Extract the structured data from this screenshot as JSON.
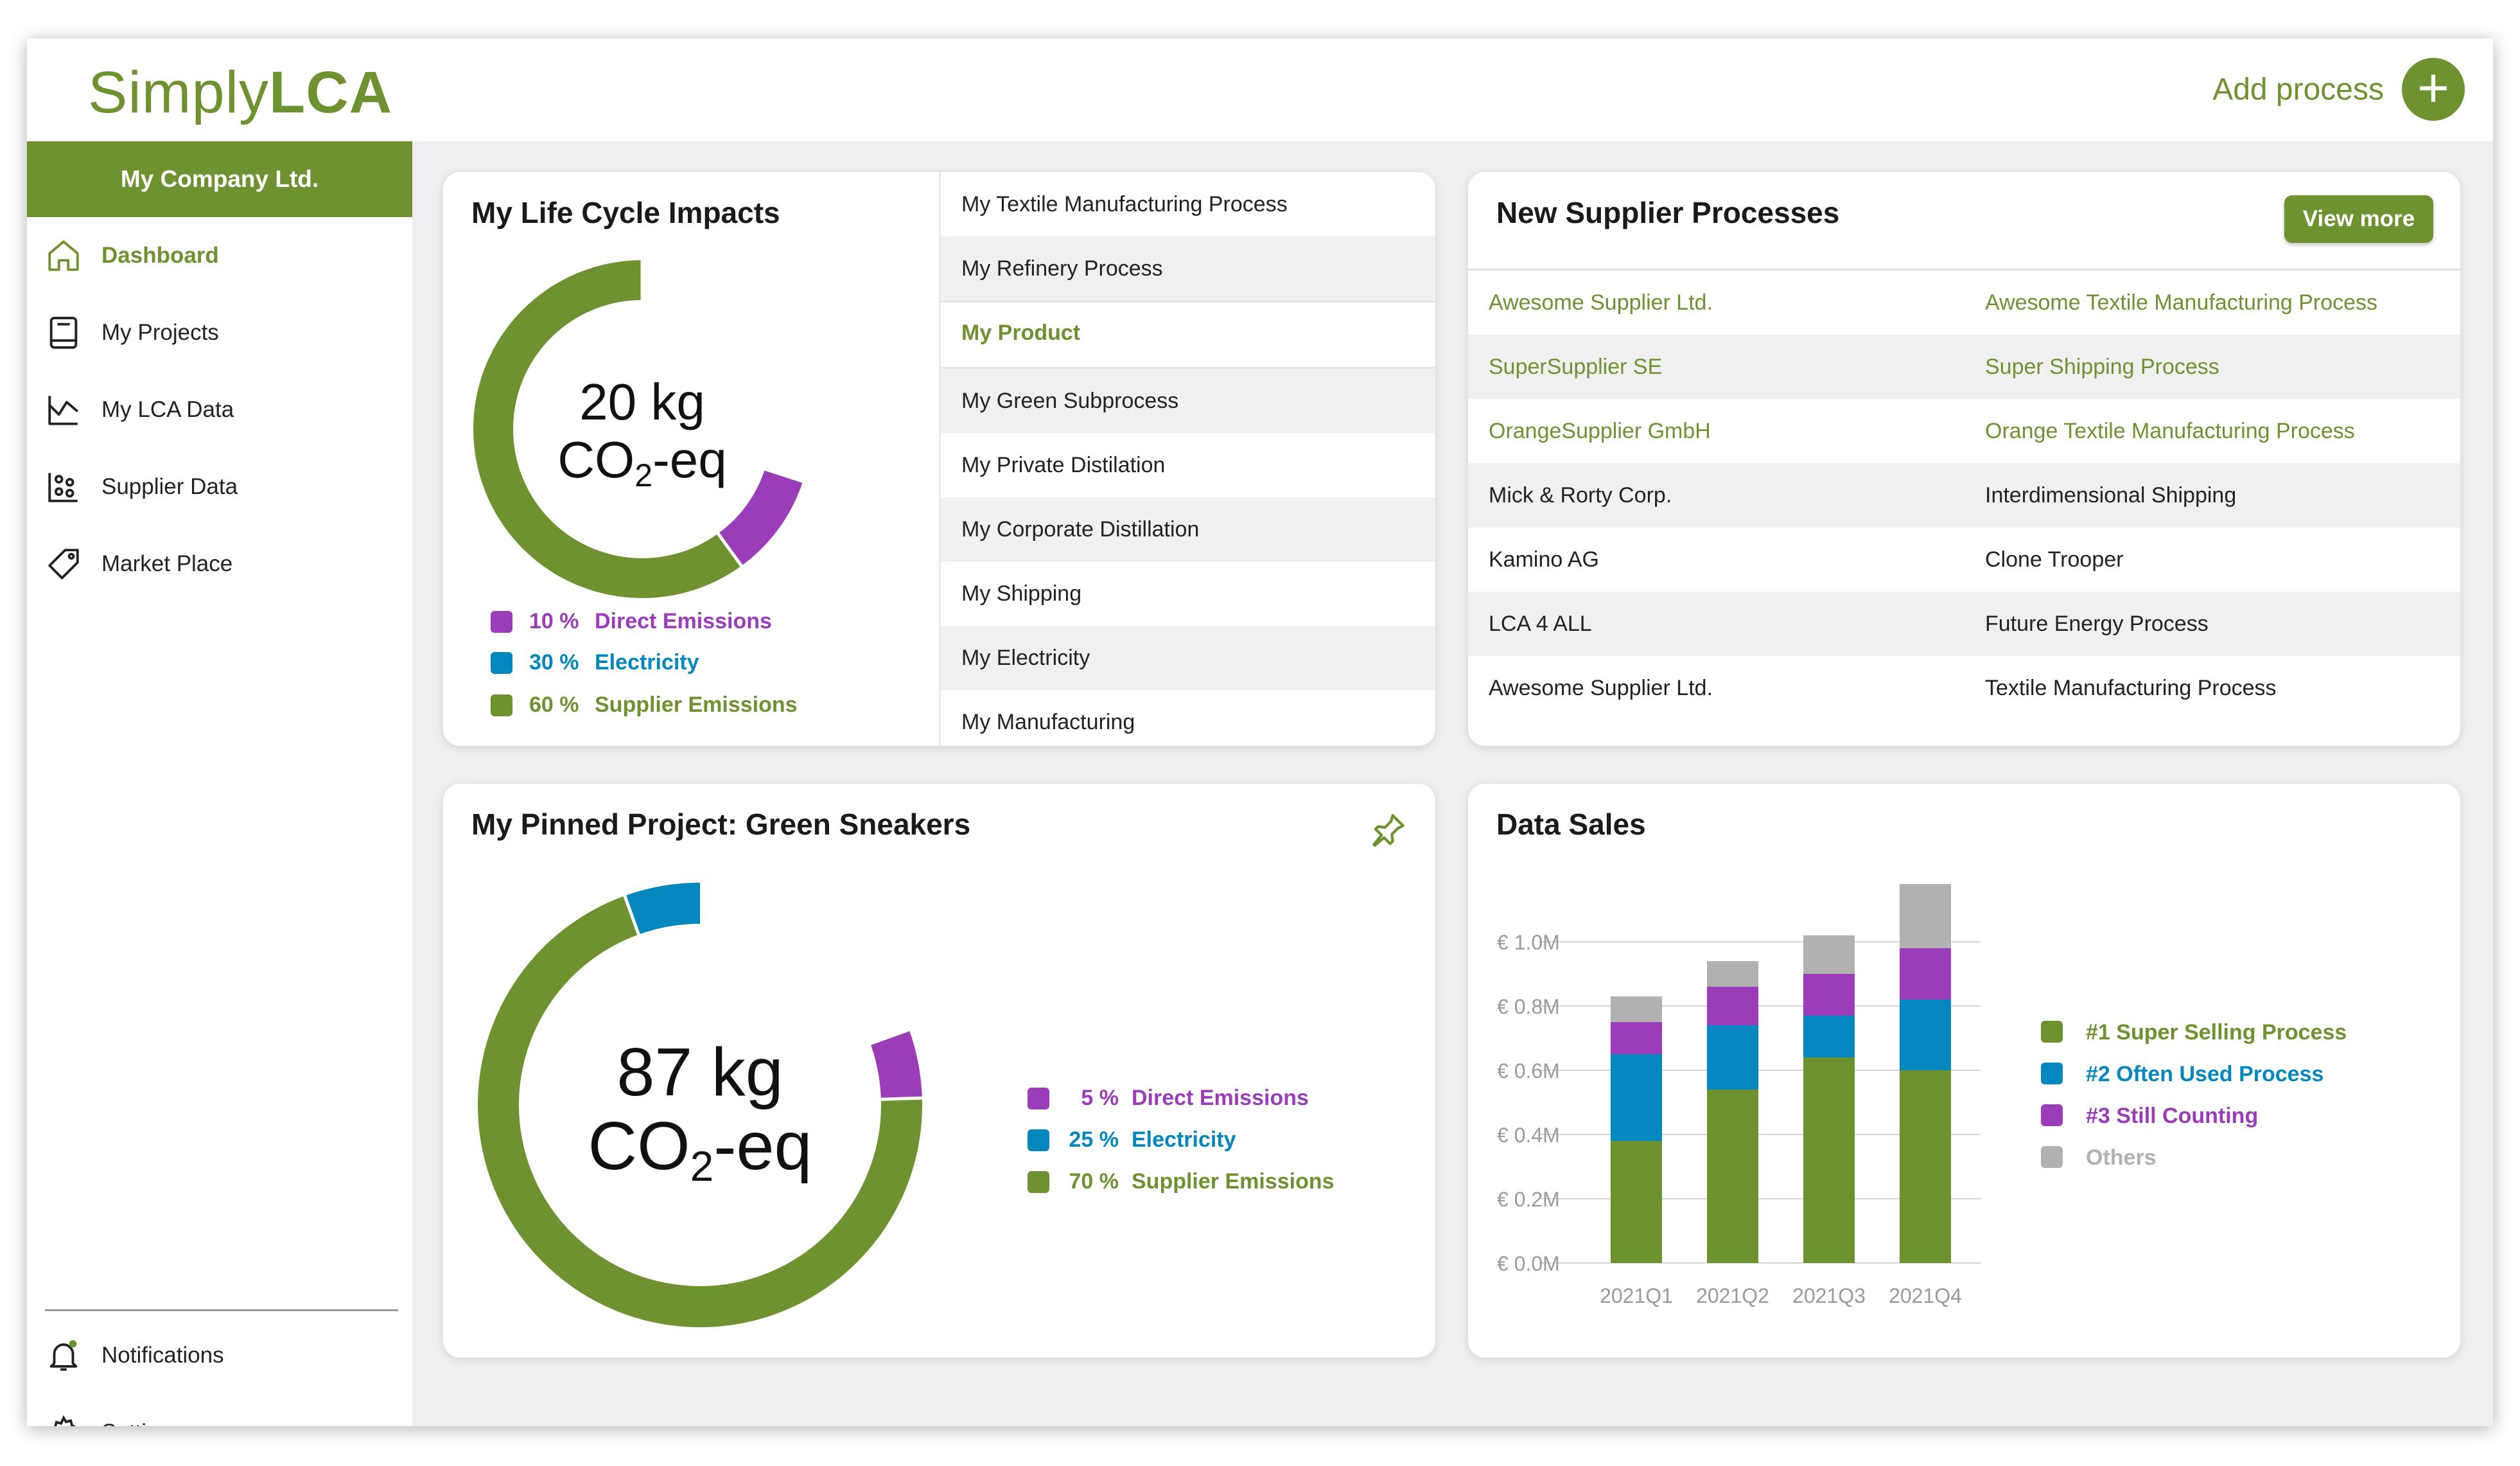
{
  "app": {
    "logo_light": "Simply",
    "logo_bold": "LCA",
    "add_process_label": "Add process"
  },
  "sidebar": {
    "company": "My Company Ltd.",
    "items": [
      {
        "label": "Dashboard",
        "icon": "home-icon",
        "active": true
      },
      {
        "label": "My Projects",
        "icon": "book-icon"
      },
      {
        "label": "My LCA Data",
        "icon": "chart-icon"
      },
      {
        "label": "Supplier Data",
        "icon": "supplier-data-icon"
      },
      {
        "label": "Market Place",
        "icon": "tag-icon"
      }
    ],
    "bottom_items": [
      {
        "label": "Notifications",
        "icon": "bell-icon"
      },
      {
        "label": "Settings",
        "icon": "gear-icon"
      }
    ]
  },
  "colors": {
    "brand_green": "#6e922f",
    "blue": "#0487bd",
    "purple": "#9b3db8",
    "gray": "#b1b1b1"
  },
  "life_cycle": {
    "title": "My Life Cycle Impacts",
    "total_value": "20 kg",
    "total_unit_prefix": "CO",
    "total_unit_sub": "2",
    "total_unit_suffix": "-eq",
    "segments": [
      {
        "pct": "10 %",
        "label": "Direct Emissions",
        "value": 10,
        "color": "#9b3db8"
      },
      {
        "pct": "30 %",
        "label": "Electricity",
        "value": 30,
        "color": "#0487bd"
      },
      {
        "pct": "60 %",
        "label": "Supplier Emissions",
        "value": 60,
        "color": "#6e922f"
      }
    ],
    "processes": [
      "My Textile Manufacturing Process",
      "My Refinery Process",
      "My Product",
      "My Green Subprocess",
      "My Private Distilation",
      "My Corporate Distillation",
      "My Shipping",
      "My Electricity",
      "My Manufacturing"
    ],
    "selected_process": "My Product"
  },
  "suppliers": {
    "title": "New Supplier Processes",
    "view_more_label": "View more",
    "rows": [
      {
        "supplier": "Awesome Supplier Ltd.",
        "process": "Awesome Textile Manufacturing Process",
        "highlight": true
      },
      {
        "supplier": "SuperSupplier SE",
        "process": "Super Shipping Process",
        "highlight": true
      },
      {
        "supplier": "OrangeSupplier GmbH",
        "process": "Orange Textile Manufacturing Process",
        "highlight": true
      },
      {
        "supplier": "Mick & Rorty Corp.",
        "process": "Interdimensional Shipping",
        "highlight": false
      },
      {
        "supplier": "Kamino AG",
        "process": "Clone Trooper",
        "highlight": false
      },
      {
        "supplier": "LCA 4 ALL",
        "process": "Future Energy Process",
        "highlight": false
      },
      {
        "supplier": "Awesome Supplier Ltd.",
        "process": "Textile Manufacturing Process",
        "highlight": false
      }
    ]
  },
  "pinned": {
    "title": "My Pinned Project: Green Sneakers",
    "total_value": "87 kg",
    "total_unit_prefix": "CO",
    "total_unit_sub": "2",
    "total_unit_suffix": "-eq",
    "icon": "pin-icon",
    "segments": [
      {
        "pct": "5 %",
        "label": "Direct Emissions",
        "value": 5,
        "color": "#9b3db8"
      },
      {
        "pct": "25 %",
        "label": "Electricity",
        "value": 25,
        "color": "#0487bd"
      },
      {
        "pct": "70 %",
        "label": "Supplier Emissions",
        "value": 70,
        "color": "#6e922f"
      }
    ]
  },
  "data_sales": {
    "title": "Data Sales",
    "chart_data": {
      "type": "bar",
      "stacked": true,
      "categories": [
        "2021Q1",
        "2021Q2",
        "2021Q3",
        "2021Q4"
      ],
      "y_ticks": [
        "€ 0.0M",
        "€ 0.2M",
        "€ 0.4M",
        "€ 0.6M",
        "€ 0.8M",
        "€ 1.0M"
      ],
      "ylim": [
        0,
        1.2
      ],
      "grid": true,
      "legend_position": "right",
      "series": [
        {
          "name": "#1 Super Selling Process",
          "values": [
            0.38,
            0.54,
            0.64,
            0.6
          ],
          "color": "#6e922f"
        },
        {
          "name": "#2 Often Used Process",
          "values": [
            0.27,
            0.2,
            0.13,
            0.22
          ],
          "color": "#0487bd"
        },
        {
          "name": "#3 Still Counting",
          "values": [
            0.1,
            0.12,
            0.13,
            0.16
          ],
          "color": "#9b3db8"
        },
        {
          "name": "Others",
          "values": [
            0.08,
            0.08,
            0.12,
            0.2
          ],
          "color": "#b1b1b1"
        }
      ]
    }
  }
}
